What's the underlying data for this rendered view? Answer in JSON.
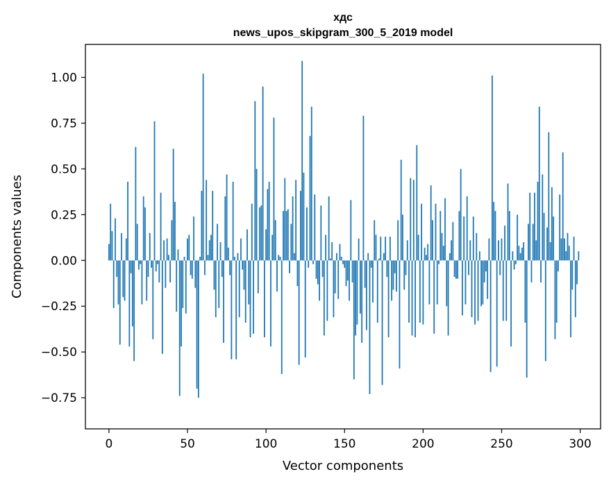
{
  "chart_data": {
    "type": "bar",
    "title": "хдс",
    "subtitle": "news_upos_skipgram_300_5_2019 model",
    "xlabel": "Vector components",
    "ylabel": "Components values",
    "xlim": [
      -15,
      313
    ],
    "ylim": [
      -0.92,
      1.18
    ],
    "xticks": [
      0,
      50,
      100,
      150,
      200,
      250,
      300
    ],
    "yticks": [
      -0.75,
      -0.5,
      -0.25,
      0.0,
      0.25,
      0.5,
      0.75,
      1.0
    ],
    "ytick_labels": [
      "−0.75",
      "−0.50",
      "−0.25",
      "0.00",
      "0.25",
      "0.50",
      "0.75",
      "1.00"
    ],
    "bar_color": "#1f77b4",
    "grid": false,
    "x": [
      0,
      1,
      2,
      3,
      4,
      5,
      6,
      7,
      8,
      9,
      10,
      11,
      12,
      13,
      14,
      15,
      16,
      17,
      18,
      19,
      20,
      21,
      22,
      23,
      24,
      25,
      26,
      27,
      28,
      29,
      30,
      31,
      32,
      33,
      34,
      35,
      36,
      37,
      38,
      39,
      40,
      41,
      42,
      43,
      44,
      45,
      46,
      47,
      48,
      49,
      50,
      51,
      52,
      53,
      54,
      55,
      56,
      57,
      58,
      59,
      60,
      61,
      62,
      63,
      64,
      65,
      66,
      67,
      68,
      69,
      70,
      71,
      72,
      73,
      74,
      75,
      76,
      77,
      78,
      79,
      80,
      81,
      82,
      83,
      84,
      85,
      86,
      87,
      88,
      89,
      90,
      91,
      92,
      93,
      94,
      95,
      96,
      97,
      98,
      99,
      100,
      101,
      102,
      103,
      104,
      105,
      106,
      107,
      108,
      109,
      110,
      111,
      112,
      113,
      114,
      115,
      116,
      117,
      118,
      119,
      120,
      121,
      122,
      123,
      124,
      125,
      126,
      127,
      128,
      129,
      130,
      131,
      132,
      133,
      134,
      135,
      136,
      137,
      138,
      139,
      140,
      141,
      142,
      143,
      144,
      145,
      146,
      147,
      148,
      149,
      150,
      151,
      152,
      153,
      154,
      155,
      156,
      157,
      158,
      159,
      160,
      161,
      162,
      163,
      164,
      165,
      166,
      167,
      168,
      169,
      170,
      171,
      172,
      173,
      174,
      175,
      176,
      177,
      178,
      179,
      180,
      181,
      182,
      183,
      184,
      185,
      186,
      187,
      188,
      189,
      190,
      191,
      192,
      193,
      194,
      195,
      196,
      197,
      198,
      199,
      200,
      201,
      202,
      203,
      204,
      205,
      206,
      207,
      208,
      209,
      210,
      211,
      212,
      213,
      214,
      215,
      216,
      217,
      218,
      219,
      220,
      221,
      222,
      223,
      224,
      225,
      226,
      227,
      228,
      229,
      230,
      231,
      232,
      233,
      234,
      235,
      236,
      237,
      238,
      239,
      240,
      241,
      242,
      243,
      244,
      245,
      246,
      247,
      248,
      249,
      250,
      251,
      252,
      253,
      254,
      255,
      256,
      257,
      258,
      259,
      260,
      261,
      262,
      263,
      264,
      265,
      266,
      267,
      268,
      269,
      270,
      271,
      272,
      273,
      274,
      275,
      276,
      277,
      278,
      279,
      280,
      281,
      282,
      283,
      284,
      285,
      286,
      287,
      288,
      289,
      290,
      291,
      292,
      293,
      294,
      295,
      296,
      297,
      298,
      299
    ],
    "values": [
      0.09,
      0.31,
      0.16,
      -0.26,
      0.23,
      -0.09,
      -0.24,
      -0.46,
      0.15,
      -0.2,
      -0.22,
      0.12,
      0.43,
      -0.47,
      -0.07,
      -0.36,
      -0.55,
      0.62,
      0.2,
      -0.05,
      -0.02,
      -0.24,
      0.35,
      0.29,
      -0.22,
      -0.09,
      0.15,
      -0.04,
      -0.43,
      0.76,
      -0.06,
      -0.02,
      -0.12,
      0.37,
      -0.51,
      0.11,
      -0.15,
      0.12,
      0.03,
      -0.12,
      0.22,
      0.61,
      0.32,
      -0.28,
      0.06,
      -0.74,
      -0.47,
      -0.26,
      0.02,
      -0.29,
      0.12,
      0.14,
      -0.08,
      -0.1,
      0.24,
      -0.15,
      -0.7,
      -0.75,
      0.02,
      0.38,
      1.02,
      -0.08,
      0.44,
      0.03,
      0.11,
      0.14,
      0.38,
      -0.16,
      -0.31,
      0.2,
      -0.26,
      0.1,
      -0.09,
      -0.45,
      0.35,
      0.47,
      0.07,
      -0.08,
      -0.54,
      0.43,
      0.02,
      -0.54,
      0.04,
      -0.31,
      0.12,
      -0.05,
      -0.16,
      -0.34,
      0.17,
      -0.24,
      -0.42,
      0.31,
      -0.4,
      0.87,
      0.5,
      -0.18,
      0.29,
      0.3,
      0.95,
      -0.42,
      0.17,
      0.39,
      0.43,
      -0.47,
      0.14,
      0.78,
      0.22,
      -0.17,
      0.03,
      0.02,
      -0.62,
      0.27,
      0.45,
      0.27,
      0.28,
      -0.07,
      0.2,
      0.35,
      0.04,
      0.44,
      -0.14,
      -0.57,
      0.38,
      1.09,
      0.48,
      -0.53,
      0.29,
      -0.04,
      0.68,
      0.84,
      -0.02,
      0.36,
      -0.1,
      -0.13,
      -0.22,
      0.3,
      -0.09,
      -0.41,
      0.14,
      -0.33,
      0.35,
      0.01,
      0.1,
      -0.31,
      -0.18,
      0.04,
      -0.21,
      0.09,
      0.02,
      -0.02,
      -0.04,
      -0.14,
      -0.11,
      -0.22,
      0.33,
      -0.12,
      -0.65,
      -0.41,
      -0.35,
      0.12,
      -0.29,
      -0.45,
      0.79,
      -0.15,
      -0.38,
      0.04,
      -0.73,
      -0.04,
      -0.23,
      0.22,
      0.14,
      -0.34,
      0.01,
      0.13,
      -0.68,
      0.04,
      0.13,
      -0.09,
      -0.42,
      0.13,
      -0.22,
      -0.16,
      -0.07,
      -0.17,
      0.22,
      -0.59,
      0.55,
      0.25,
      -0.16,
      -0.08,
      0.11,
      -0.34,
      0.45,
      -0.41,
      0.44,
      -0.42,
      0.63,
      0.14,
      -0.34,
      0.31,
      -0.35,
      0.07,
      0.03,
      0.09,
      -0.24,
      0.41,
      0.22,
      -0.4,
      0.31,
      -0.24,
      -0.02,
      0.27,
      0.15,
      0.08,
      0.34,
      -0.25,
      -0.41,
      0.04,
      0.11,
      0.21,
      -0.09,
      -0.1,
      -0.1,
      0.27,
      0.5,
      -0.3,
      0.24,
      -0.24,
      0.35,
      -0.08,
      0.11,
      -0.31,
      0.24,
      -0.35,
      0.15,
      -0.33,
      0.05,
      -0.25,
      -0.24,
      -0.12,
      -0.06,
      -0.21,
      0.12,
      -0.61,
      1.01,
      0.32,
      0.27,
      -0.58,
      0.11,
      -0.08,
      0.12,
      -0.33,
      0.19,
      -0.33,
      0.42,
      0.27,
      -0.47,
      0.05,
      -0.05,
      -0.02,
      0.25,
      0.08,
      0.04,
      0.07,
      0.1,
      -0.34,
      -0.64,
      0.2,
      0.37,
      -0.12,
      0.2,
      0.37,
      0.11,
      0.43,
      0.84,
      -0.12,
      0.47,
      0.26,
      -0.55,
      0.18,
      0.7,
      0.1,
      0.4,
      0.24,
      -0.43,
      -0.34,
      -0.06,
      0.36,
      0.12,
      0.59,
      0.12,
      0.05,
      0.15,
      0.08,
      -0.42,
      -0.16,
      0.13,
      -0.31,
      -0.13,
      0.05
    ]
  }
}
